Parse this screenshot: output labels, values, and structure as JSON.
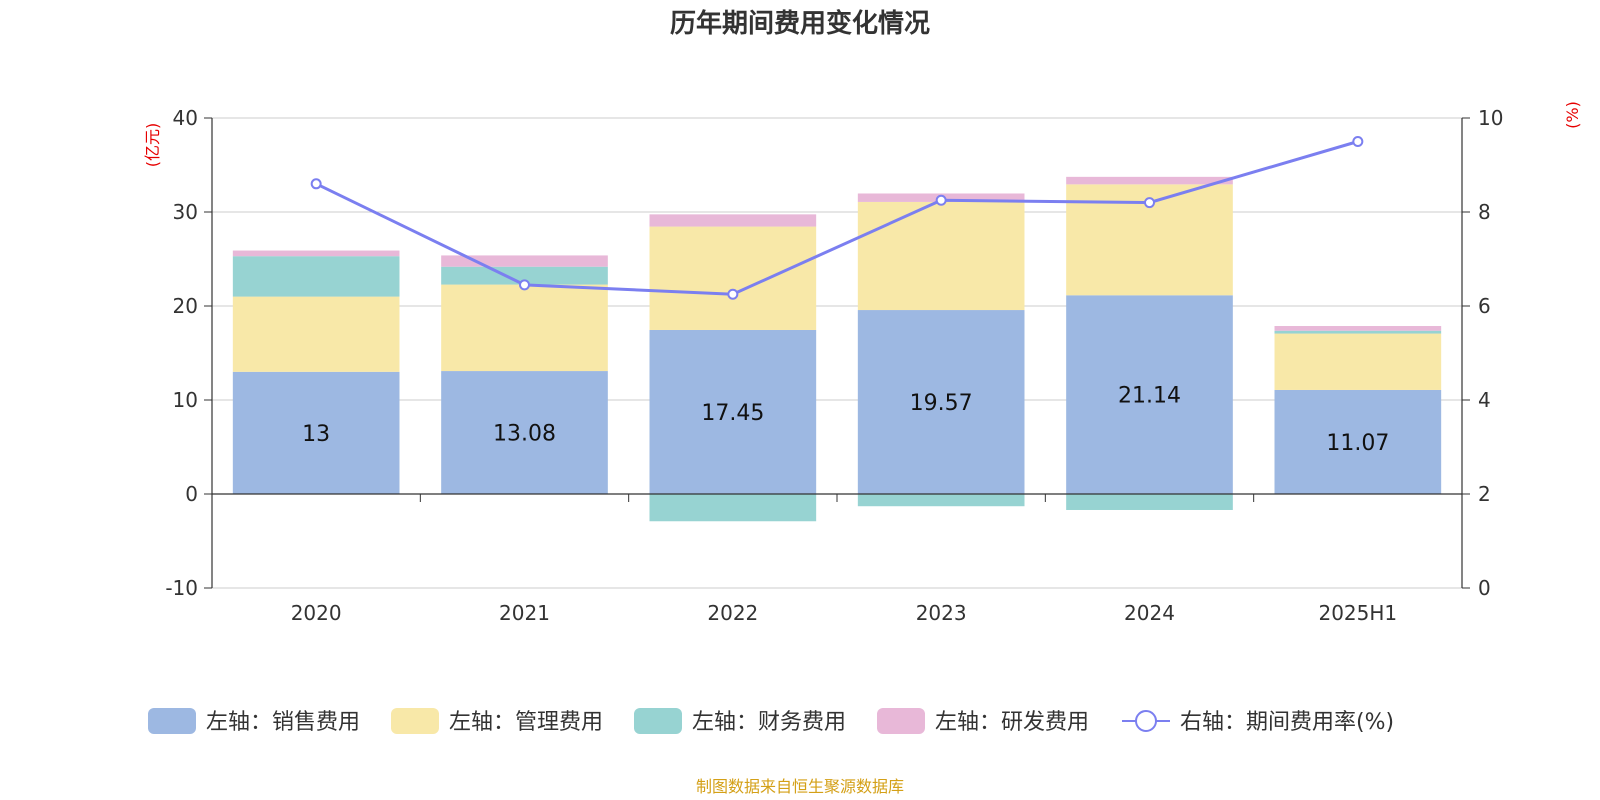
{
  "chart_data": {
    "type": "bar",
    "title": "历年期间费用变化情况",
    "categories": [
      "2020",
      "2021",
      "2022",
      "2023",
      "2024",
      "2025H1"
    ],
    "left_axis": {
      "unit": "(亿元)",
      "ylim": [
        -10,
        40
      ],
      "ticks": [
        -10,
        0,
        10,
        20,
        30,
        40
      ]
    },
    "right_axis": {
      "unit": "(%)",
      "ylim": [
        0,
        10
      ],
      "ticks": [
        0,
        2,
        4,
        6,
        8,
        10
      ]
    },
    "series": [
      {
        "name": "左轴：销售费用",
        "axis": "left",
        "stack": true,
        "color": "#9db8e2",
        "values": [
          13,
          13.08,
          17.45,
          19.57,
          21.14,
          11.07
        ],
        "labels": [
          "13",
          "13.08",
          "17.45",
          "19.57",
          "21.14",
          "11.07"
        ]
      },
      {
        "name": "左轴：管理费用",
        "axis": "left",
        "stack": true,
        "color": "#f8e8a8",
        "values": [
          8.0,
          9.2,
          11.0,
          11.5,
          11.8,
          6.0
        ]
      },
      {
        "name": "左轴：财务费用",
        "axis": "left",
        "stack": true,
        "color": "#97d3d2",
        "values": [
          4.3,
          1.9,
          -2.9,
          -1.3,
          -1.7,
          0.3
        ]
      },
      {
        "name": "左轴：研发费用",
        "axis": "left",
        "stack": true,
        "color": "#e8b8d8",
        "values": [
          0.6,
          1.2,
          1.3,
          0.9,
          0.8,
          0.5
        ]
      },
      {
        "name": "右轴：期间费用率(%)",
        "axis": "right",
        "type": "line",
        "color": "#7b7ff0",
        "values": [
          8.6,
          6.45,
          6.25,
          8.25,
          8.2,
          9.5
        ]
      }
    ],
    "grid": true,
    "legend_position": "bottom"
  },
  "source": "制图数据来自恒生聚源数据库"
}
